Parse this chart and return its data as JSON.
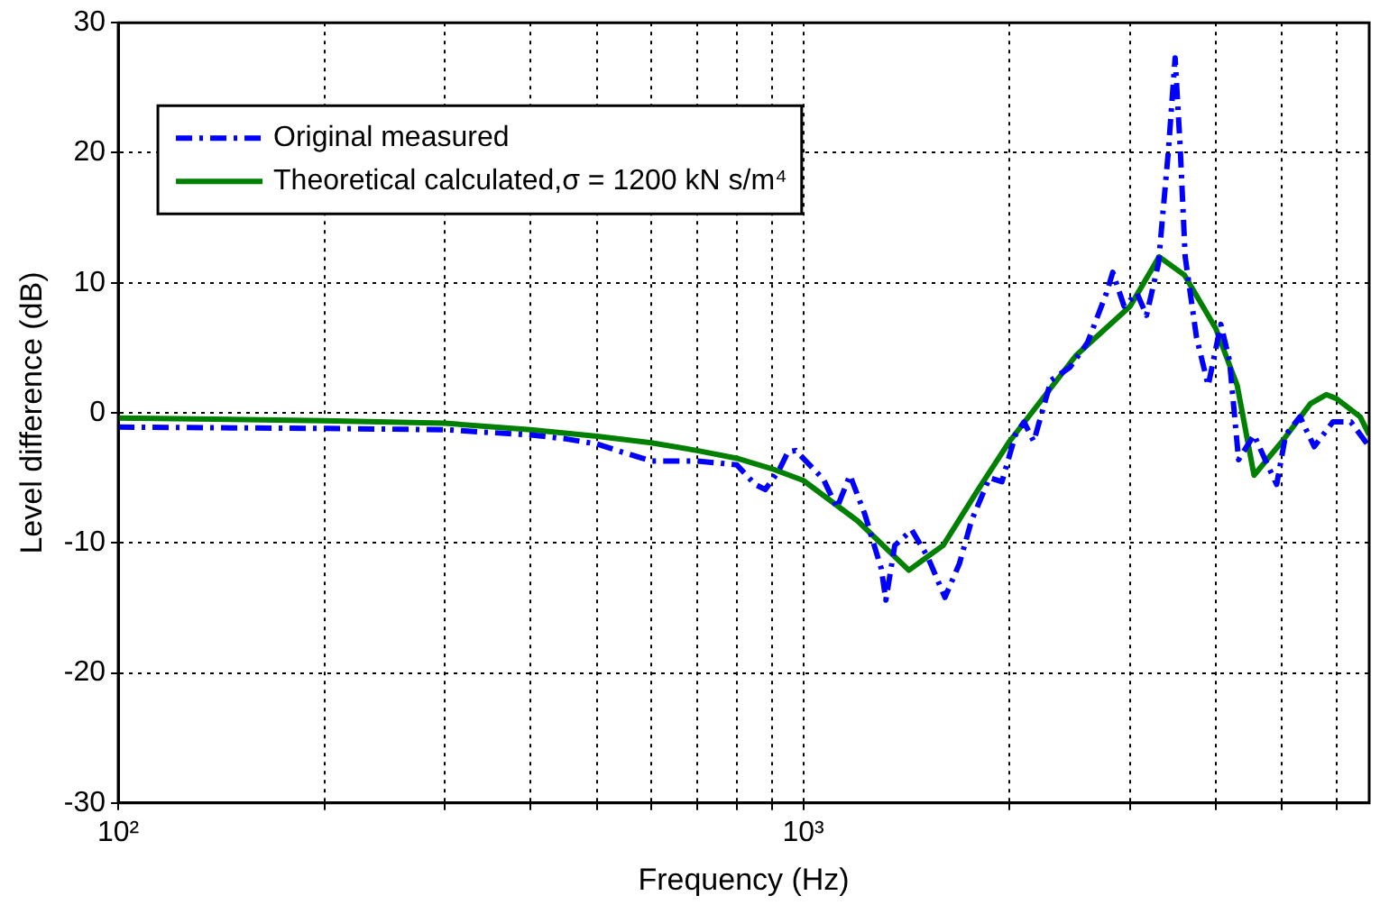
{
  "chart_data": {
    "type": "line",
    "xlabel": "Frequency (Hz)",
    "ylabel": "Level difference (dB)",
    "log": "x",
    "xlim": [
      100,
      6700
    ],
    "ylim": [
      -30,
      30
    ],
    "xticks": [
      {
        "value": 100,
        "label": "10²"
      },
      {
        "value": 200,
        "label": null
      },
      {
        "value": 300,
        "label": null
      },
      {
        "value": 400,
        "label": null
      },
      {
        "value": 500,
        "label": null
      },
      {
        "value": 600,
        "label": null
      },
      {
        "value": 700,
        "label": null
      },
      {
        "value": 800,
        "label": null
      },
      {
        "value": 900,
        "label": null
      },
      {
        "value": 1000,
        "label": "10³"
      },
      {
        "value": 2000,
        "label": null
      },
      {
        "value": 3000,
        "label": null
      },
      {
        "value": 4000,
        "label": null
      },
      {
        "value": 5000,
        "label": null
      },
      {
        "value": 6000,
        "label": null
      }
    ],
    "yticks": [
      -30,
      -20,
      -10,
      0,
      10,
      20,
      30
    ],
    "grid": true,
    "legend": "top left",
    "marker": "none",
    "series": [
      {
        "name": "Original measured",
        "color": "#0000ff",
        "line_style": "dashed",
        "x": [
          100,
          200,
          300,
          400,
          450,
          500,
          550,
          600,
          700,
          800,
          850,
          880,
          920,
          950,
          975,
          1070,
          1120,
          1170,
          1230,
          1300,
          1320,
          1360,
          1440,
          1520,
          1610,
          1690,
          1760,
          1870,
          1950,
          2040,
          2100,
          2170,
          2300,
          2450,
          2600,
          2770,
          2830,
          2940,
          3070,
          3170,
          3300,
          3410,
          3490,
          3550,
          3610,
          3750,
          3900,
          4070,
          4190,
          4320,
          4550,
          4760,
          4910,
          5060,
          5310,
          5570,
          5930,
          6300,
          6700
        ],
        "values": [
          -1.1,
          -1.2,
          -1.3,
          -1.7,
          -2.0,
          -2.4,
          -3.1,
          -3.7,
          -3.7,
          -4.0,
          -5.5,
          -5.9,
          -4.5,
          -3.0,
          -2.9,
          -5.1,
          -7.3,
          -4.8,
          -7.8,
          -12,
          -14.4,
          -10.2,
          -9.0,
          -11.1,
          -14.2,
          -11.6,
          -8.3,
          -5.0,
          -5.3,
          -1.7,
          -0.7,
          -2.2,
          2.5,
          3.5,
          5.4,
          9.2,
          10.8,
          8.2,
          9.2,
          7.5,
          11.5,
          20,
          27.3,
          20.4,
          12,
          5.8,
          2.1,
          6.8,
          4,
          -3.6,
          -1.7,
          -4.0,
          -5.5,
          -1.7,
          -0.3,
          -2.6,
          -0.7,
          -0.7,
          -2.6
        ]
      },
      {
        "name": "Theoretical calculated,σ = 1200 kN s/m⁴",
        "color": "#008000",
        "line_style": "solid",
        "x": [
          100,
          200,
          300,
          400,
          500,
          600,
          700,
          800,
          900,
          1000,
          1200,
          1426,
          1600,
          1800,
          2000,
          2500,
          3000,
          3307,
          3600,
          4000,
          4300,
          4550,
          5000,
          5500,
          5800,
          6000,
          6500,
          6700
        ],
        "values": [
          -0.4,
          -0.6,
          -0.8,
          -1.3,
          -1.8,
          -2.3,
          -2.9,
          -3.5,
          -4.3,
          -5.2,
          -8.3,
          -12.1,
          -10.2,
          -5.9,
          -2.2,
          4.4,
          8.2,
          12.0,
          10.6,
          6.5,
          2.1,
          -4.8,
          -2.2,
          0.7,
          1.4,
          1.1,
          -0.3,
          -1.7
        ]
      }
    ]
  }
}
